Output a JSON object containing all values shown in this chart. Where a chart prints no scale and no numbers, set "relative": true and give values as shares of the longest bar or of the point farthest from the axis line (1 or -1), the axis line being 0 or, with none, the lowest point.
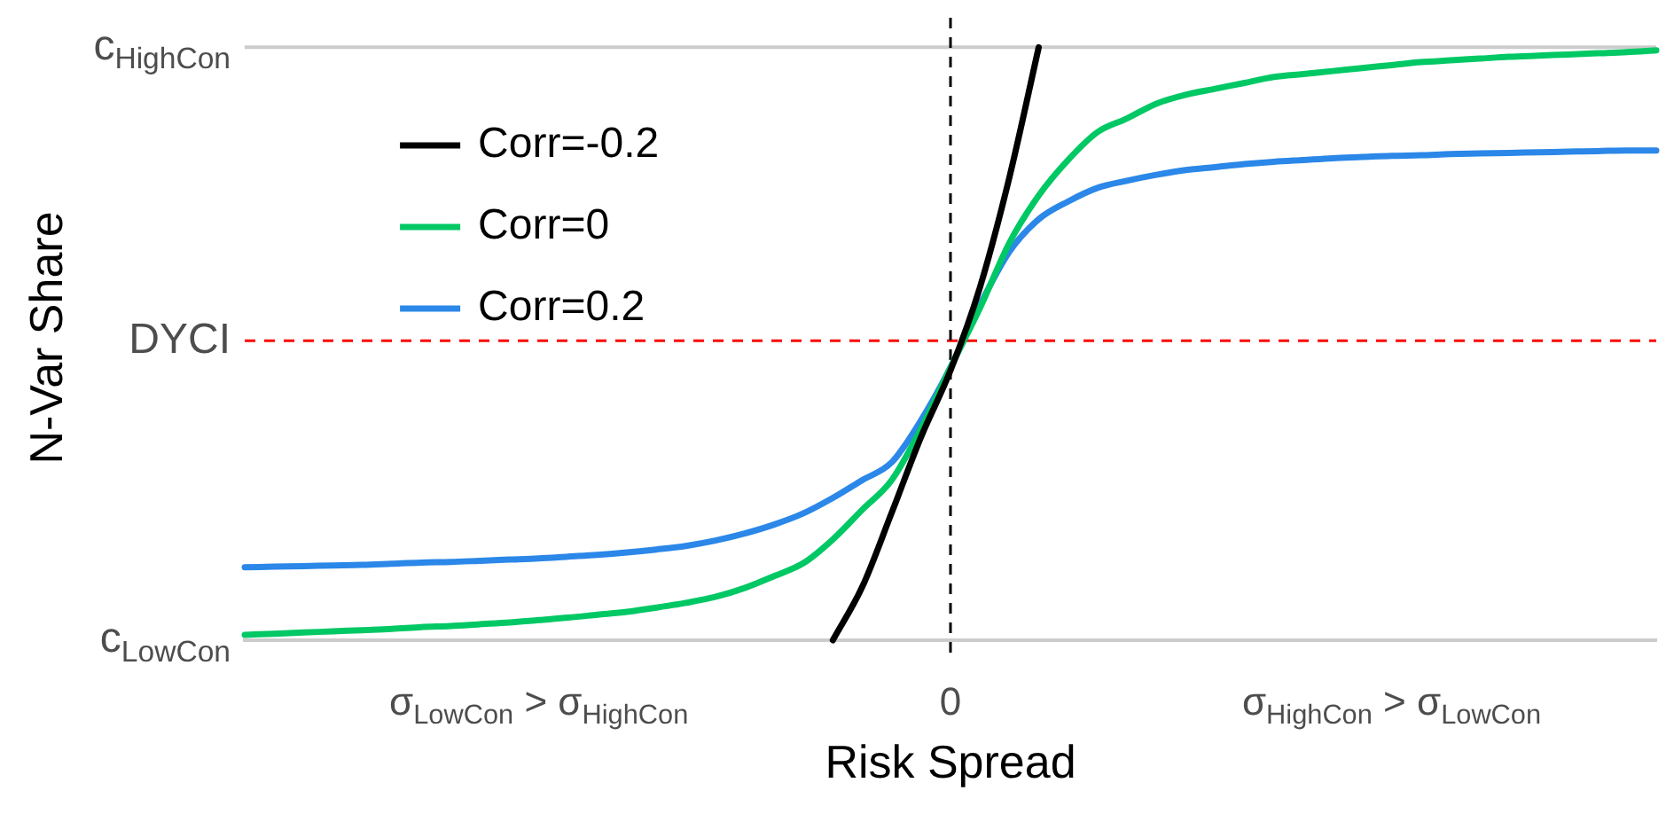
{
  "chart_data": {
    "type": "line",
    "xlabel": "Risk Spread",
    "ylabel": "N-Var Share",
    "relative": true,
    "categories": [
      null,
      null,
      null,
      null,
      null,
      null,
      null,
      null,
      null,
      null,
      "σ$_{LowCon}$ > σ$_{HighCon}$",
      null,
      null,
      null,
      null,
      null,
      null,
      null,
      null,
      null,
      null,
      null,
      null,
      null,
      "0",
      null,
      null,
      null,
      null,
      null,
      null,
      null,
      null,
      null,
      null,
      null,
      null,
      null,
      null,
      "σ$_{HighCon}$ > σ$_{LowCon}$",
      null,
      null,
      null,
      null,
      null,
      null,
      null,
      null,
      null
    ],
    "legend": "top left",
    "marker": "none",
    "line_style": "solid",
    "annotations": [
      "c$_{LowCon}$"
    ],
    "ref_lines": [
      {
        "axis": "y",
        "value": 1,
        "label": "c$_{HighCon}$",
        "color": "#cccccc",
        "line_style": "solid"
      },
      {
        "axis": "y",
        "value": 0.505,
        "label": "DYCI",
        "color": "#ff0000",
        "line_style": "dashed"
      },
      {
        "axis": "x",
        "value": "0",
        "color": "#000000",
        "line_style": "dashed"
      }
    ],
    "series": [
      {
        "name": "Corr=-0.2",
        "color": "#000000",
        "values": [
          null,
          null,
          null,
          null,
          null,
          null,
          null,
          null,
          null,
          null,
          null,
          null,
          null,
          null,
          null,
          null,
          null,
          null,
          null,
          null,
          0,
          0.09,
          0.215,
          0.343,
          0.455,
          0.595,
          0.78,
          1,
          null,
          null,
          null,
          null,
          null,
          null,
          null,
          null,
          null,
          null,
          null,
          null,
          null,
          null,
          null,
          null,
          null,
          null,
          null,
          null,
          null
        ]
      },
      {
        "name": "Corr=0",
        "color": "#00c864",
        "values": [
          0.009,
          0.011,
          0.013,
          0.015,
          0.017,
          0.019,
          0.022,
          0.024,
          0.027,
          0.03,
          0.034,
          0.038,
          0.043,
          0.048,
          0.055,
          0.063,
          0.073,
          0.088,
          0.108,
          0.13,
          0.17,
          0.22,
          0.27,
          0.357,
          0.46,
          0.56,
          0.67,
          0.75,
          0.81,
          0.857,
          0.88,
          0.905,
          0.92,
          0.93,
          0.94,
          0.95,
          0.955,
          0.96,
          0.965,
          0.97,
          0.975,
          0.978,
          0.981,
          0.984,
          0.986,
          0.988,
          0.99,
          0.992,
          0.995
        ]
      },
      {
        "name": "Corr=0.2",
        "color": "#2b87e8",
        "values": [
          0.123,
          0.124,
          0.125,
          0.126,
          0.127,
          0.129,
          0.131,
          0.132,
          0.134,
          0.136,
          0.138,
          0.141,
          0.144,
          0.148,
          0.153,
          0.159,
          0.168,
          0.18,
          0.195,
          0.214,
          0.24,
          0.27,
          0.3,
          0.371,
          0.46,
          0.565,
          0.655,
          0.71,
          0.74,
          0.763,
          0.775,
          0.785,
          0.793,
          0.798,
          0.803,
          0.807,
          0.81,
          0.813,
          0.815,
          0.817,
          0.818,
          0.82,
          0.821,
          0.822,
          0.823,
          0.824,
          0.825,
          0.826,
          0.826
        ]
      }
    ]
  }
}
